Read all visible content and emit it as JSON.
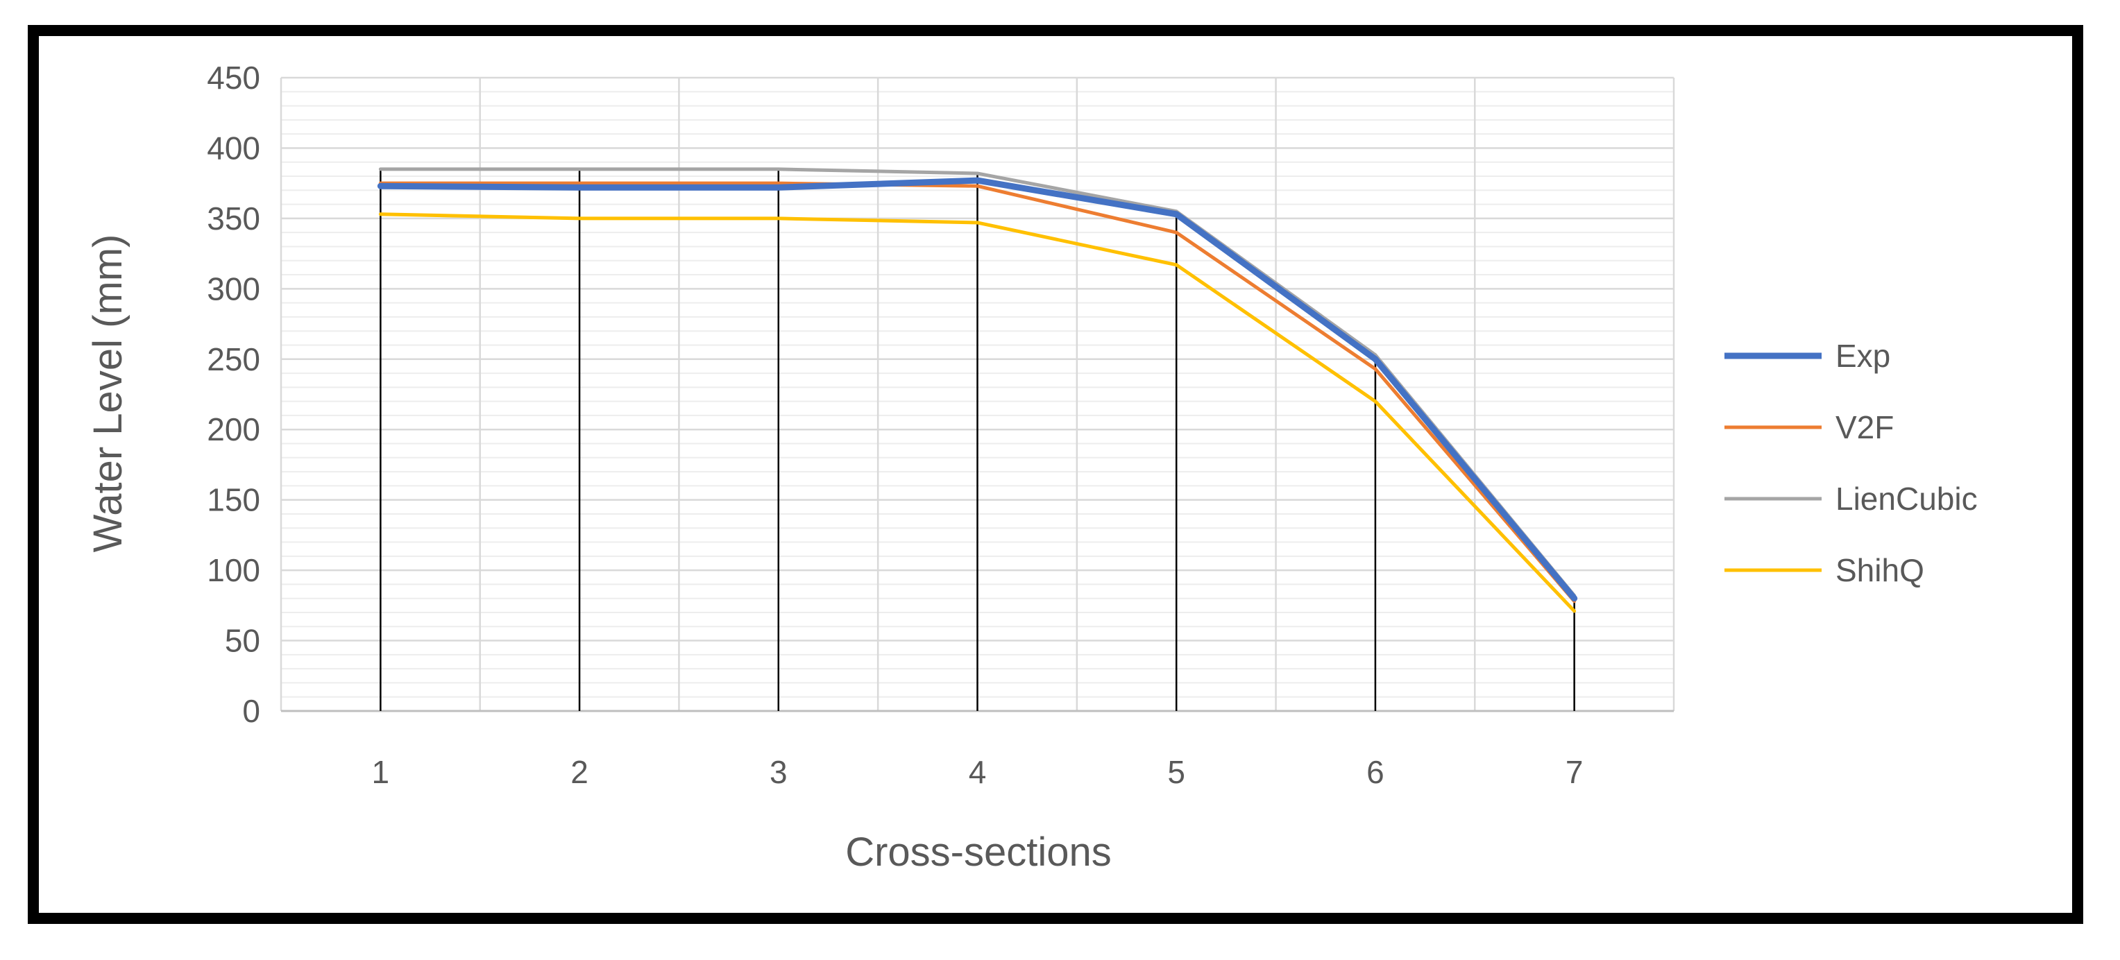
{
  "chart_data": {
    "type": "line",
    "title": "",
    "xlabel": "Cross-sections",
    "ylabel": "Water Level (mm)",
    "categories": [
      "1",
      "2",
      "3",
      "4",
      "5",
      "6",
      "7"
    ],
    "ylim": [
      0,
      450
    ],
    "yticks": [
      0,
      50,
      100,
      150,
      200,
      250,
      300,
      350,
      400,
      450
    ],
    "grid": true,
    "drop_lines": true,
    "legend_position": "right",
    "series": [
      {
        "name": "Exp",
        "color": "#4472c4",
        "values": [
          373,
          372,
          372,
          377,
          353,
          250,
          80
        ]
      },
      {
        "name": "V2F",
        "color": "#ed7d31",
        "values": [
          375,
          375,
          375,
          373,
          340,
          243,
          78
        ]
      },
      {
        "name": "LienCubic",
        "color": "#a5a5a5",
        "values": [
          385,
          385,
          385,
          382,
          355,
          253,
          82
        ]
      },
      {
        "name": "ShihQ",
        "color": "#ffc000",
        "values": [
          353,
          350,
          350,
          347,
          317,
          220,
          71
        ]
      }
    ]
  }
}
